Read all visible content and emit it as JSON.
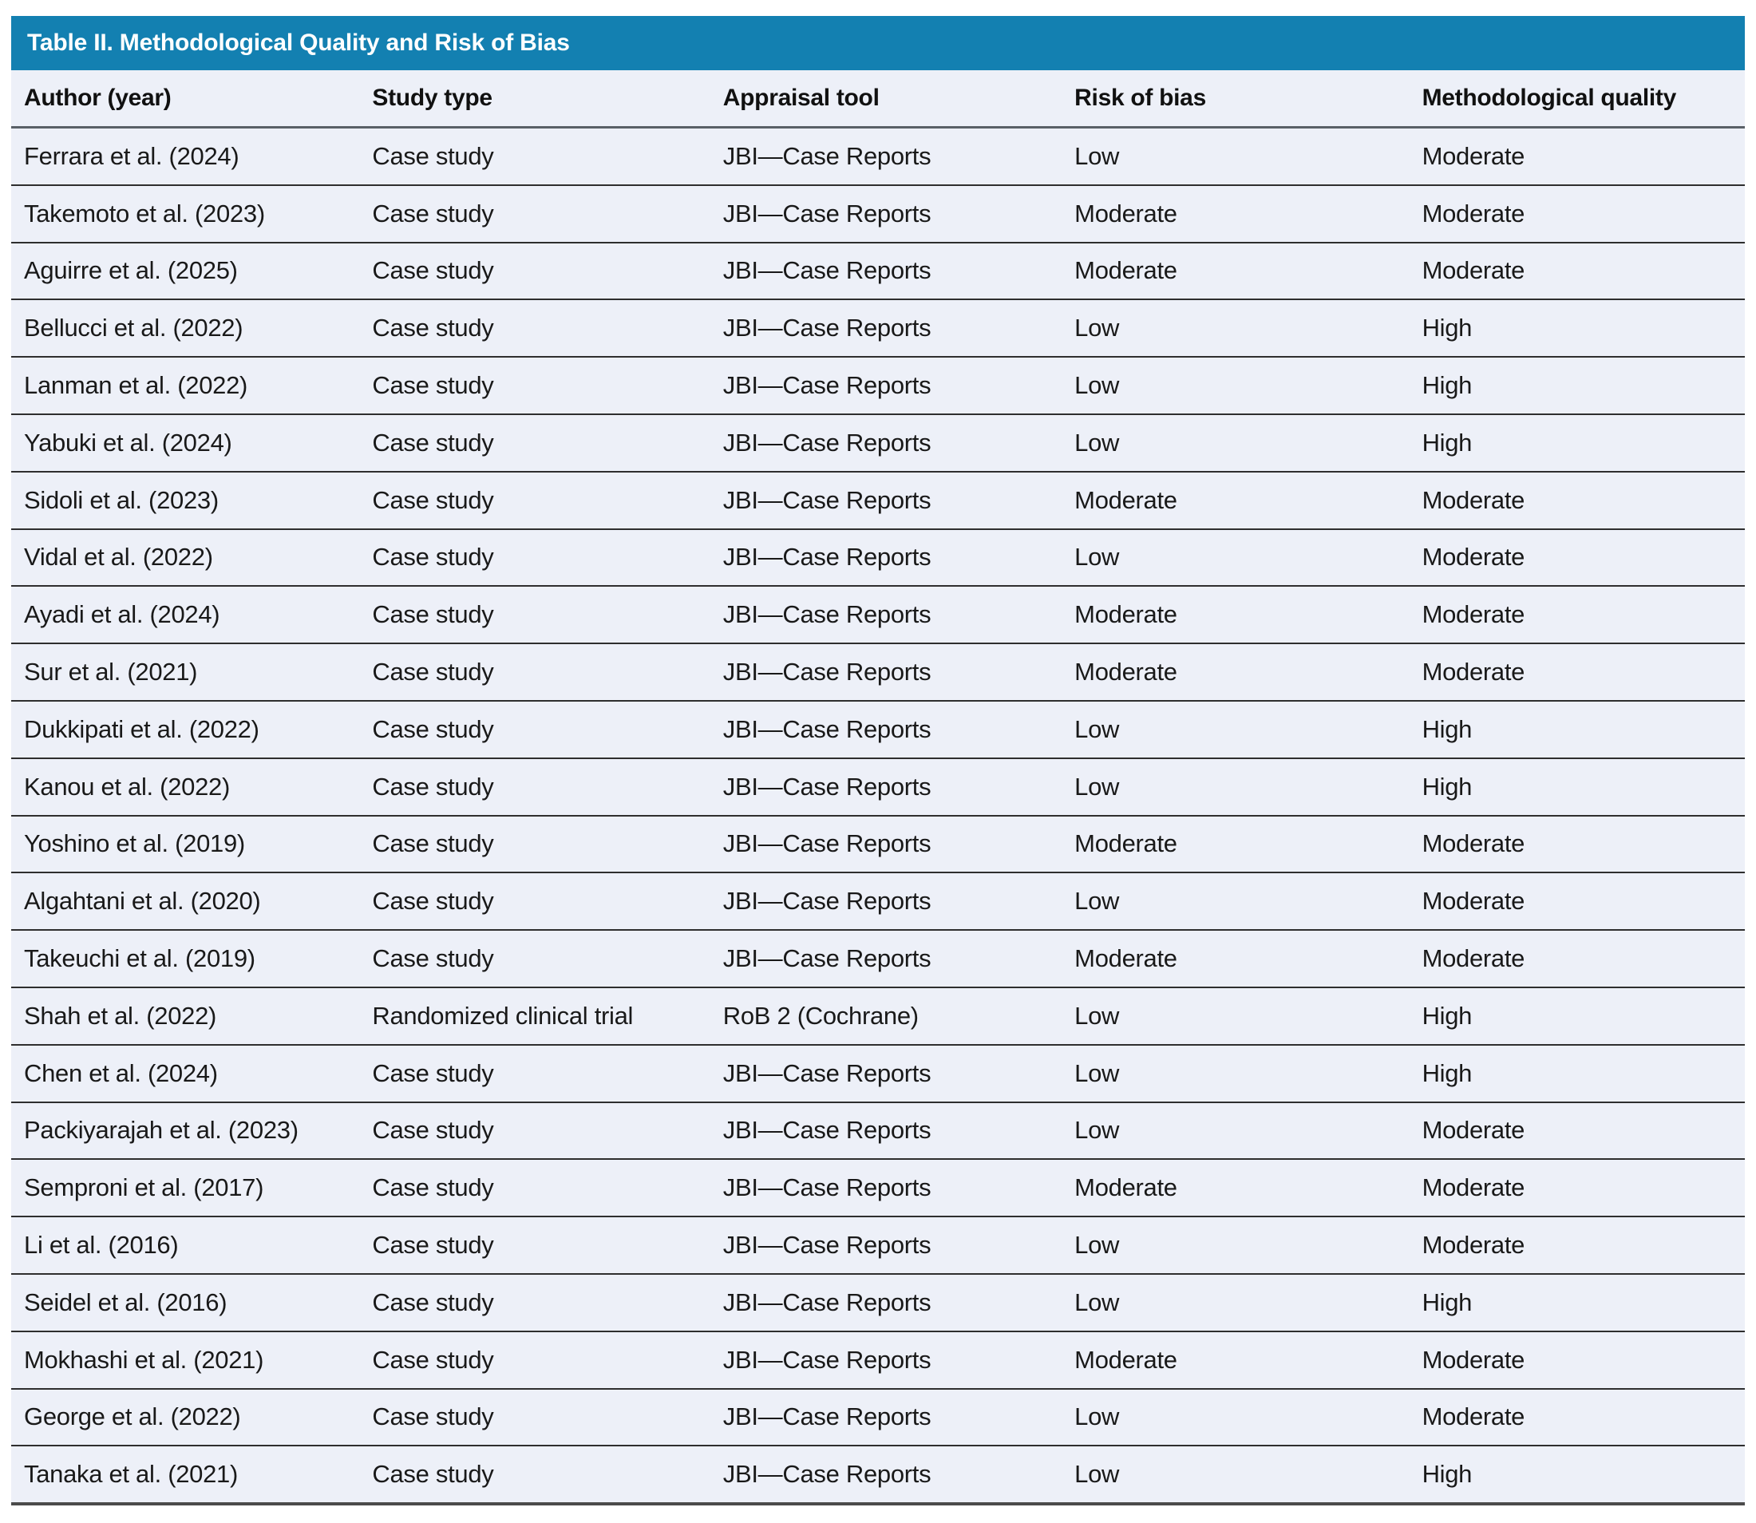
{
  "table": {
    "title": "Table II. Methodological Quality and Risk of Bias",
    "columns": [
      "Author (year)",
      "Study type",
      "Appraisal tool",
      "Risk of bias",
      "Methodological quality"
    ],
    "column_keys": [
      "author",
      "study-type",
      "appraisal-tool",
      "risk-of-bias",
      "methodological-quality"
    ],
    "rows": [
      [
        "Ferrara et al. (2024)",
        "Case study",
        "JBI—Case Reports",
        "Low",
        "Moderate"
      ],
      [
        "Takemoto et al. (2023)",
        "Case study",
        "JBI—Case Reports",
        "Moderate",
        "Moderate"
      ],
      [
        "Aguirre et al. (2025)",
        "Case study",
        "JBI—Case Reports",
        "Moderate",
        "Moderate"
      ],
      [
        "Bellucci et al. (2022)",
        "Case study",
        "JBI—Case Reports",
        "Low",
        "High"
      ],
      [
        "Lanman et al. (2022)",
        "Case study",
        "JBI—Case Reports",
        "Low",
        "High"
      ],
      [
        "Yabuki et al. (2024)",
        "Case study",
        "JBI—Case Reports",
        "Low",
        "High"
      ],
      [
        "Sidoli et al. (2023)",
        "Case study",
        "JBI—Case Reports",
        "Moderate",
        "Moderate"
      ],
      [
        "Vidal et al. (2022)",
        "Case study",
        "JBI—Case Reports",
        "Low",
        "Moderate"
      ],
      [
        "Ayadi et al. (2024)",
        "Case study",
        "JBI—Case Reports",
        "Moderate",
        "Moderate"
      ],
      [
        "Sur et al. (2021)",
        "Case study",
        "JBI—Case Reports",
        "Moderate",
        "Moderate"
      ],
      [
        "Dukkipati et al. (2022)",
        "Case study",
        "JBI—Case Reports",
        "Low",
        "High"
      ],
      [
        "Kanou et al. (2022)",
        "Case study",
        "JBI—Case Reports",
        "Low",
        "High"
      ],
      [
        "Yoshino et al. (2019)",
        "Case study",
        "JBI—Case Reports",
        "Moderate",
        "Moderate"
      ],
      [
        "Algahtani et al. (2020)",
        "Case study",
        "JBI—Case Reports",
        "Low",
        "Moderate"
      ],
      [
        "Takeuchi et al. (2019)",
        "Case study",
        "JBI—Case Reports",
        "Moderate",
        "Moderate"
      ],
      [
        "Shah et al. (2022)",
        "Randomized clinical trial",
        "RoB 2 (Cochrane)",
        "Low",
        "High"
      ],
      [
        "Chen et al. (2024)",
        "Case study",
        "JBI—Case Reports",
        "Low",
        "High"
      ],
      [
        "Packiyarajah et al. (2023)",
        "Case study",
        "JBI—Case Reports",
        "Low",
        "Moderate"
      ],
      [
        "Semproni et al. (2017)",
        "Case study",
        "JBI—Case Reports",
        "Moderate",
        "Moderate"
      ],
      [
        "Li et al. (2016)",
        "Case study",
        "JBI—Case Reports",
        "Low",
        "Moderate"
      ],
      [
        "Seidel et al. (2016)",
        "Case study",
        "JBI—Case Reports",
        "Low",
        "High"
      ],
      [
        "Mokhashi et al. (2021)",
        "Case study",
        "JBI—Case Reports",
        "Moderate",
        "Moderate"
      ],
      [
        "George et al. (2022)",
        "Case study",
        "JBI—Case Reports",
        "Low",
        "Moderate"
      ],
      [
        "Tanaka et al. (2021)",
        "Case study",
        "JBI—Case Reports",
        "Low",
        "High"
      ]
    ]
  },
  "colors": {
    "title_bar": "#1380b1",
    "title_text": "#ffffff",
    "row_background": "#edf0f8",
    "body_text": "#191919",
    "row_separator": "#2e2e2e",
    "header_rule": "#5a6067",
    "bottom_border": "#4b4b4b",
    "page_background": "#ffffff"
  }
}
